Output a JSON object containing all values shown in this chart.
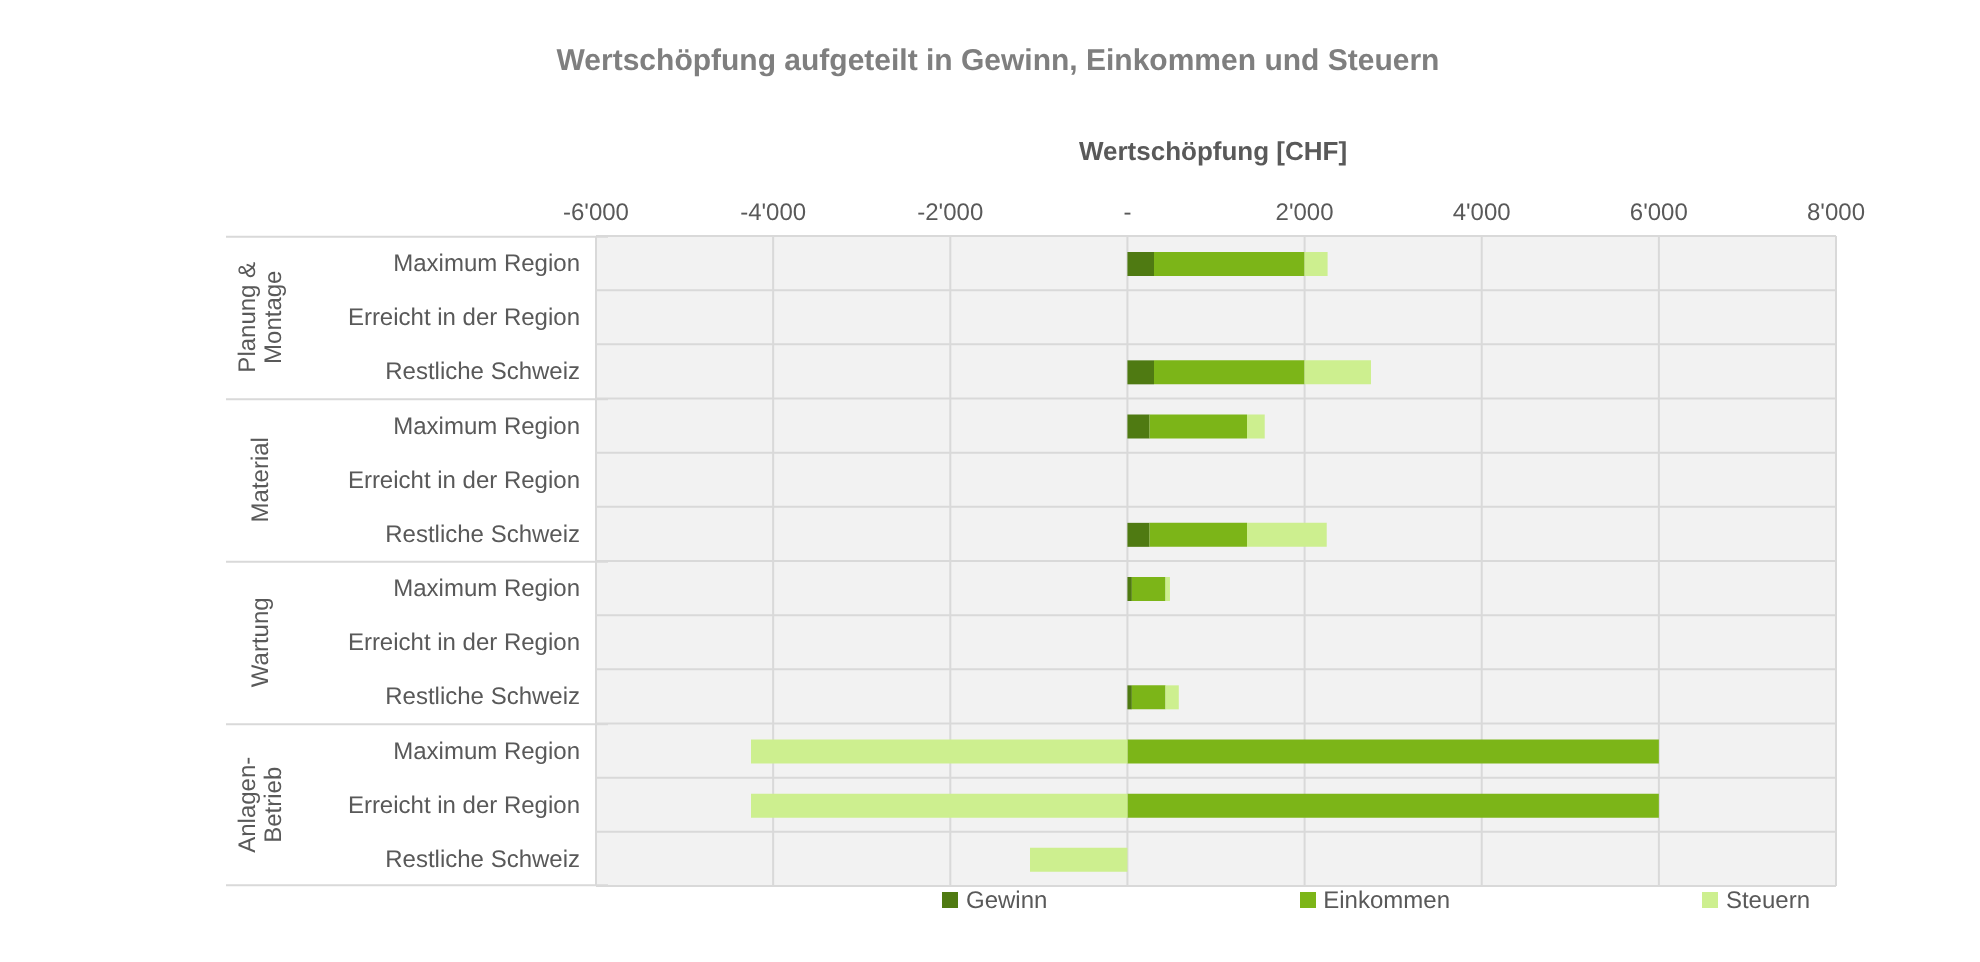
{
  "chart_data": {
    "type": "bar",
    "orientation": "horizontal",
    "stacked": true,
    "title": "Wertschöpfung aufgeteilt in Gewinn, Einkommen und Steuern",
    "xlabel": "Wertschöpfung [CHF]",
    "categories": [
      "Maximum Region",
      "Erreicht in der Region",
      "Restliche Schweiz",
      "Maximum Region",
      "Erreicht in der Region",
      "Restliche Schweiz",
      "Maximum Region",
      "Erreicht in der Region",
      "Restliche Schweiz",
      "Maximum Region",
      "Erreicht in der Region",
      "Restliche Schweiz"
    ],
    "annotations": [
      "Planung & Montage",
      "Material",
      "Wartung",
      "Anlagen-Betrieb"
    ],
    "series": [
      {
        "name": "Gewinn",
        "color": "#4f7a12",
        "values": [
          300,
          null,
          300,
          250,
          null,
          250,
          50,
          null,
          50,
          0,
          0,
          0
        ]
      },
      {
        "name": "Einkommen",
        "color": "#7cb518",
        "values": [
          1700,
          null,
          1700,
          1100,
          null,
          1100,
          380,
          null,
          380,
          6000,
          6000,
          0
        ]
      },
      {
        "name": "Steuern",
        "color": "#cdef8f",
        "values": [
          260,
          null,
          750,
          200,
          null,
          900,
          50,
          null,
          150,
          -4250,
          -4250,
          -1100
        ]
      }
    ],
    "xlim": [
      -6000,
      8000
    ],
    "xticks": [
      {
        "value": -6000,
        "label": "-6'000"
      },
      {
        "value": -4000,
        "label": "-4'000"
      },
      {
        "value": -2000,
        "label": "-2'000"
      },
      {
        "value": 0,
        "label": "-"
      },
      {
        "value": 2000,
        "label": "2'000"
      },
      {
        "value": 4000,
        "label": "4'000"
      },
      {
        "value": 6000,
        "label": "6'000"
      },
      {
        "value": 8000,
        "label": "8'000"
      }
    ],
    "grid": true,
    "legend": "bottom"
  }
}
